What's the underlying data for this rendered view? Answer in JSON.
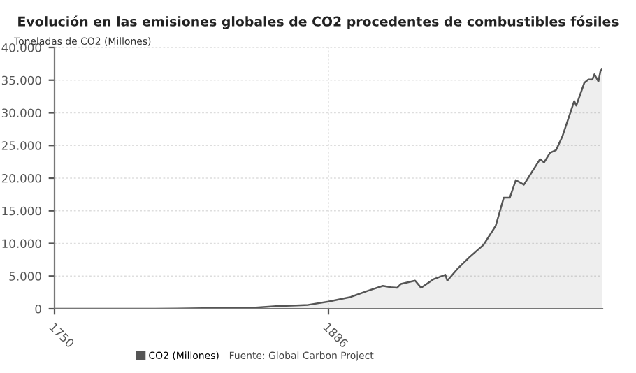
{
  "chart_data": {
    "type": "area",
    "title": "Evolución en las emisiones globales de CO2 procedentes de combustibles fósiles",
    "ylabel": "Toneladas de CO2 (Millones)",
    "annotations": [
      "Fuente: Global Carbon Project"
    ],
    "x": [
      1750,
      1800,
      1830,
      1850,
      1860,
      1870,
      1876,
      1886,
      1897,
      1906,
      1913,
      1917,
      1920,
      1922,
      1929,
      1932,
      1938,
      1944,
      1945,
      1950,
      1956,
      1963,
      1969,
      1973,
      1976,
      1979,
      1983,
      1991,
      1993,
      1996,
      1999,
      2002,
      2008,
      2009,
      2013,
      2015,
      2017,
      2018,
      2020,
      2021,
      2022
    ],
    "series": [
      {
        "name": "CO2 (Millones)",
        "color": "#555555",
        "values": [
          0,
          0,
          100,
          200,
          400,
          500,
          600,
          1100,
          1800,
          2800,
          3500,
          3300,
          3200,
          3800,
          4300,
          3200,
          4500,
          5200,
          4300,
          6100,
          7900,
          9800,
          12700,
          17000,
          17000,
          19700,
          19000,
          22900,
          22400,
          23900,
          24300,
          26300,
          31800,
          31100,
          34600,
          35100,
          35100,
          35900,
          34800,
          36400,
          36800
        ]
      }
    ],
    "xlim": [
      1750,
      2022
    ],
    "xticks": [
      1750,
      1886
    ],
    "ylim": [
      0,
      40000
    ],
    "yticks": [
      {
        "value": 0,
        "label": "0"
      },
      {
        "value": 5000,
        "label": "5.000"
      },
      {
        "value": 10000,
        "label": "10.000"
      },
      {
        "value": 15000,
        "label": "15.000"
      },
      {
        "value": 20000,
        "label": "20.000"
      },
      {
        "value": 25000,
        "label": "25.000"
      },
      {
        "value": 30000,
        "label": "30.000"
      },
      {
        "value": 35000,
        "label": "35.000"
      },
      {
        "value": 40000,
        "label": "40.000"
      }
    ],
    "grid": true,
    "legend": "bottom",
    "marker": "none",
    "line_style": "solid"
  }
}
